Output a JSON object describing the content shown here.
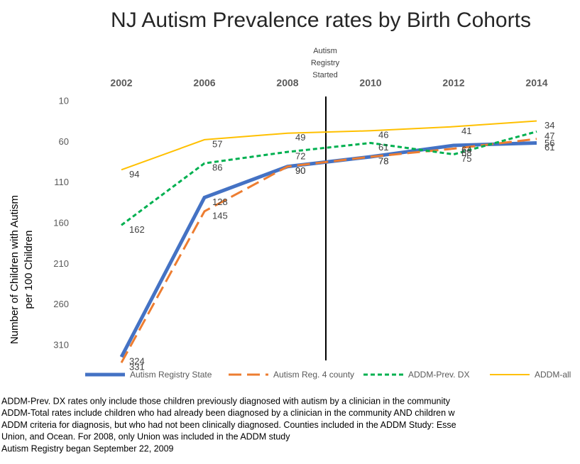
{
  "chart_data": {
    "type": "line",
    "title": "NJ Autism Prevalence rates by Birth Cohorts",
    "y_label": [
      "Number of Children with Autism",
      "per 100 Children"
    ],
    "categories": [
      "2002",
      "2006",
      "2008",
      "2010",
      "2012",
      "2014"
    ],
    "series": [
      {
        "name": "Autism Registry State",
        "color": "#4472c4",
        "values": [
          324,
          128,
          90,
          78,
          64,
          61
        ]
      },
      {
        "name": "Autism Reg. 4 county",
        "color": "#ed7d31",
        "values": [
          331,
          145,
          90,
          78,
          68,
          56
        ]
      },
      {
        "name": "ADDM-Prev. DX",
        "color": "#00b050",
        "values": [
          162,
          86,
          72,
          61,
          75,
          47
        ]
      },
      {
        "name": "ADDM-all",
        "color": "#ffc000",
        "values": [
          94,
          57,
          49,
          46,
          41,
          34
        ]
      }
    ],
    "ylim": [
      10,
      335
    ],
    "yticks": [
      10,
      60,
      110,
      160,
      210,
      260,
      310
    ],
    "y_reversed": true,
    "annotation": [
      "Autism",
      "Registry",
      "Started"
    ],
    "legend": "bottom",
    "notes": [
      "ADDM-Prev. DX rates only include those children previously diagnosed with autism by a clinician in the community",
      "ADDM-Total rates include children who had already been diagnosed by a clinician in the community AND children w",
      "ADDM criteria for diagnosis, but who had not been clinically diagnosed. Counties included in the ADDM Study: Esse",
      "Union, and Ocean. For 2008, only Union was included in the ADDM study",
      "Autism Registry began September 22, 2009"
    ]
  }
}
